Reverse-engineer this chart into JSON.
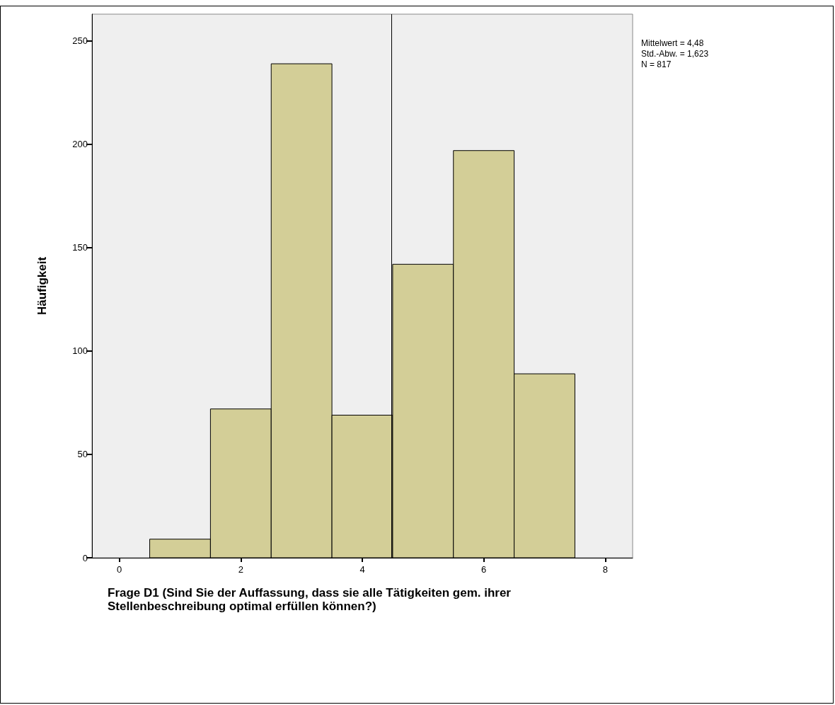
{
  "chart_data": {
    "type": "histogram",
    "ylabel": "Häufigkeit",
    "xlabel": "Frage D1 (Sind Sie der Auffassung, dass sie alle Tätigkeiten gem. ihrer Stellenbeschreibung optimal erfüllen können?)",
    "bins": [
      0.5,
      1.5,
      2.5,
      3.5,
      4.5,
      5.5,
      6.5,
      7.5
    ],
    "values": [
      9,
      72,
      239,
      69,
      142,
      197,
      89
    ],
    "color": "#d3ce97",
    "xlim": [
      -0.45,
      8.45
    ],
    "xticks": [
      0,
      2,
      4,
      6,
      8
    ],
    "ylim": [
      0,
      263
    ],
    "yticks": [
      0,
      50,
      100,
      150,
      200,
      250
    ],
    "ref_lines": [
      {
        "axis": "x",
        "value": 4.48,
        "label": null,
        "color": "#000000"
      }
    ],
    "annotations": [
      "Mittelwert = 4,48",
      "Std.-Abw. = 1,623",
      "N = 817"
    ],
    "grid": false
  }
}
